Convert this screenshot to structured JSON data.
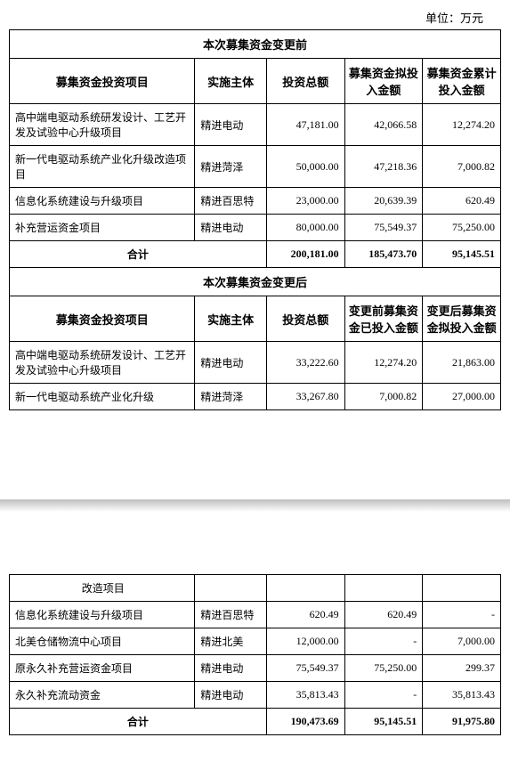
{
  "unit_label": "单位：万元",
  "dash": "-",
  "table1": {
    "section_header": "本次募集资金变更前",
    "headers": {
      "h1": "募集资金投资项目",
      "h2": "实施主体",
      "h3": "投资总额",
      "h4": "募集资金拟投入金额",
      "h5": "募集资金累计投入金额"
    },
    "rows": [
      {
        "proj": "高中端电驱动系统研发设计、工艺开发及试验中心升级项目",
        "entity": "精进电动",
        "total": "47,181.00",
        "plan": "42,066.58",
        "cum": "12,274.20"
      },
      {
        "proj": "新一代电驱动系统产业化升级改造项目",
        "entity": "精进菏泽",
        "total": "50,000.00",
        "plan": "47,218.36",
        "cum": "7,000.82"
      },
      {
        "proj": "信息化系统建设与升级项目",
        "entity": "精进百思特",
        "total": "23,000.00",
        "plan": "20,639.39",
        "cum": "620.49"
      },
      {
        "proj": "补充营运资金项目",
        "entity": "精进电动",
        "total": "80,000.00",
        "plan": "75,549.37",
        "cum": "75,250.00"
      }
    ],
    "total": {
      "label": "合计",
      "c3": "200,181.00",
      "c4": "185,473.70",
      "c5": "95,145.51"
    }
  },
  "table2": {
    "section_header": "本次募集资金变更后",
    "headers": {
      "h1": "募集资金投资项目",
      "h2": "实施主体",
      "h3": "投资总额",
      "h4": "变更前募集资金已投入金额",
      "h5": "变更后募集资金拟投入金额"
    },
    "rows": [
      {
        "proj": "高中端电驱动系统研发设计、工艺开发及试验中心升级项目",
        "entity": "精进电动",
        "total": "33,222.60",
        "before": "12,274.20",
        "after": "21,863.00"
      },
      {
        "proj": "新一代电驱动系统产业化升级",
        "entity": "精进菏泽",
        "total": "33,267.80",
        "before": "7,000.82",
        "after": "27,000.00"
      }
    ]
  },
  "table3": {
    "rows": [
      {
        "proj": "改造项目",
        "entity": "",
        "c3": "",
        "c4": "",
        "c5": ""
      },
      {
        "proj": "信息化系统建设与升级项目",
        "entity": "精进百思特",
        "c3": "620.49",
        "c4": "620.49",
        "c5": "-"
      },
      {
        "proj": "北美仓储物流中心项目",
        "entity": "精进北美",
        "c3": "12,000.00",
        "c4": "-",
        "c5": "7,000.00"
      },
      {
        "proj": "原永久补充营运资金项目",
        "entity": "精进电动",
        "c3": "75,549.37",
        "c4": "75,250.00",
        "c5": "299.37"
      },
      {
        "proj": "永久补充流动资金",
        "entity": "精进电动",
        "c3": "35,813.43",
        "c4": "-",
        "c5": "35,813.43"
      }
    ],
    "total": {
      "label": "合计",
      "c3": "190,473.69",
      "c4": "95,145.51",
      "c5": "91,975.80"
    }
  }
}
